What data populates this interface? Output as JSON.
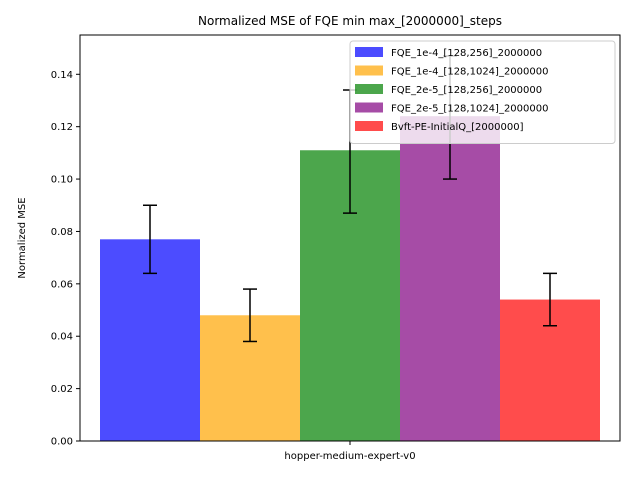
{
  "chart_data": {
    "type": "bar",
    "title": "Normalized MSE of FQE min max_[2000000]_steps",
    "xlabel": "",
    "ylabel": "Normalized MSE",
    "categories": [
      "hopper-medium-expert-v0"
    ],
    "ylim": [
      0,
      0.155
    ],
    "yticks": [
      "0.00",
      "0.02",
      "0.04",
      "0.06",
      "0.08",
      "0.10",
      "0.12",
      "0.14"
    ],
    "grid": false,
    "legend_position": "top-right",
    "series": [
      {
        "name": "FQE_1e-4_[128,256]_2000000",
        "color": "#0000ff",
        "values": [
          0.077
        ],
        "err_low": [
          0.064
        ],
        "err_high": [
          0.09
        ]
      },
      {
        "name": "FQE_1e-4_[128,1024]_2000000",
        "color": "#ffa500",
        "values": [
          0.048
        ],
        "err_low": [
          0.038
        ],
        "err_high": [
          0.058
        ]
      },
      {
        "name": "FQE_2e-5_[128,256]_2000000",
        "color": "#008000",
        "values": [
          0.111
        ],
        "err_low": [
          0.087
        ],
        "err_high": [
          0.134
        ]
      },
      {
        "name": "FQE_2e-5_[128,1024]_2000000",
        "color": "#800080",
        "values": [
          0.124
        ],
        "err_low": [
          0.1
        ],
        "err_high": [
          0.147
        ]
      },
      {
        "name": "Bvft-PE-InitialQ_[2000000]",
        "color": "#ff0000",
        "values": [
          0.054
        ],
        "err_low": [
          0.044
        ],
        "err_high": [
          0.064
        ]
      }
    ]
  }
}
